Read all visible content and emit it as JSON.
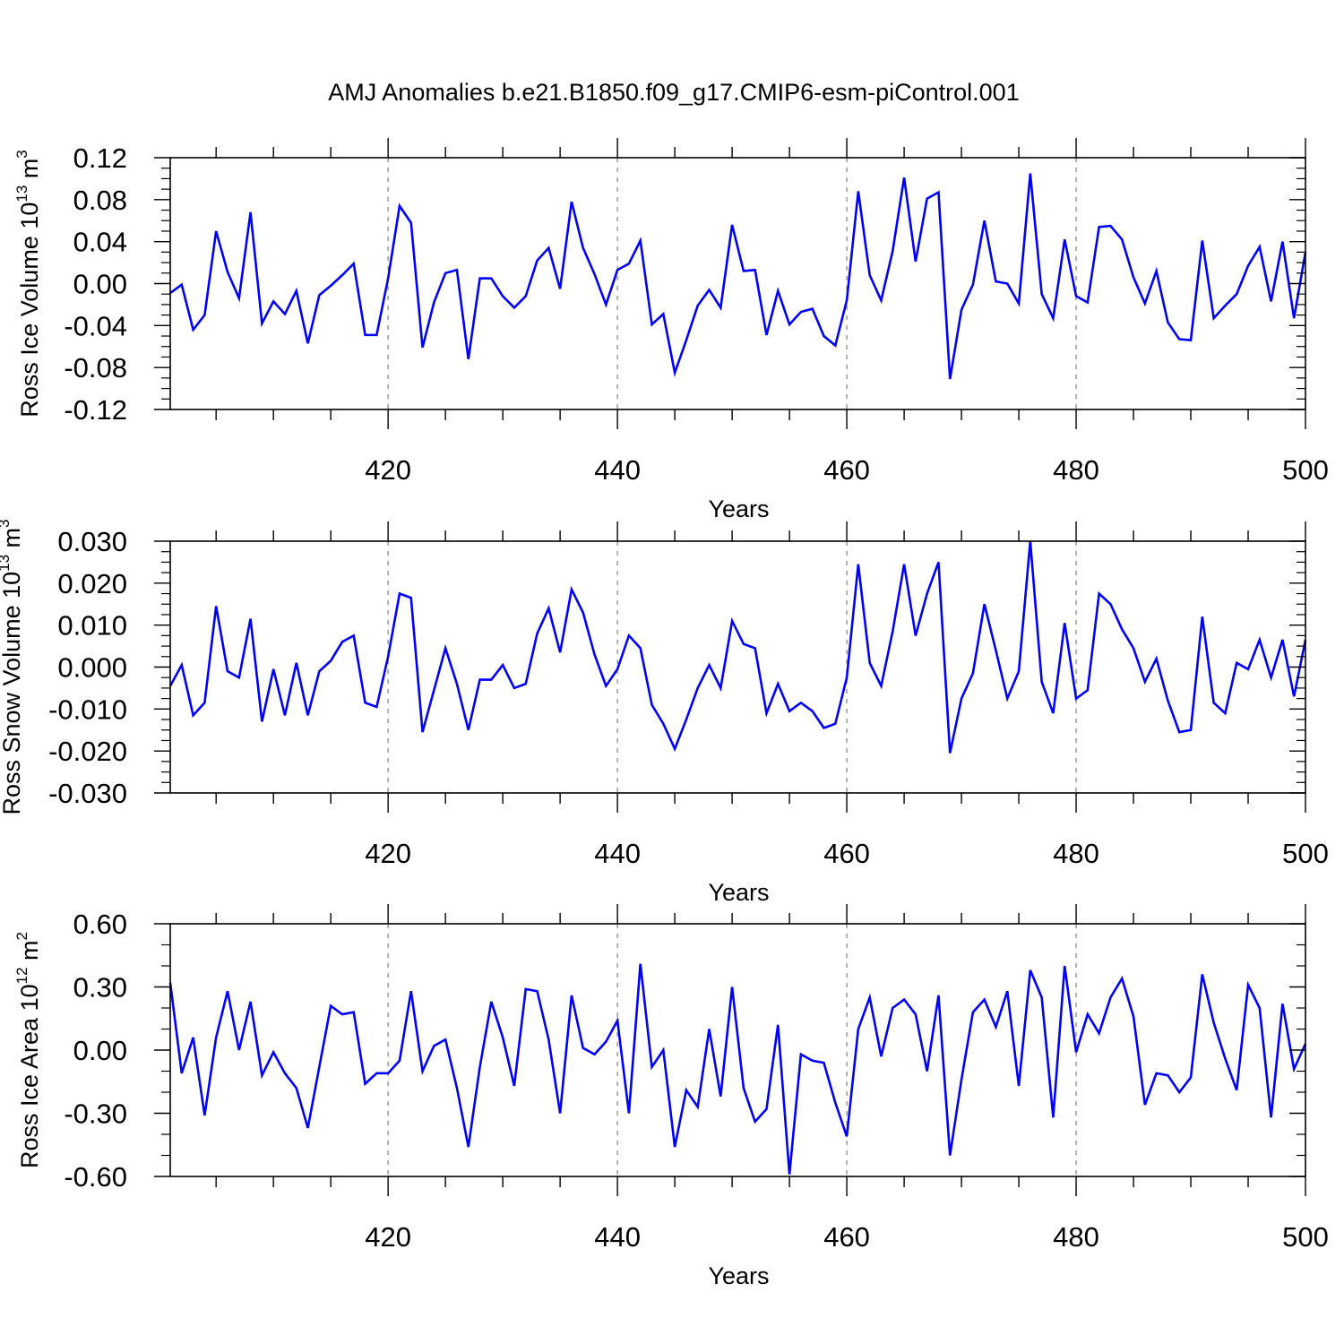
{
  "figure_title": "AMJ Anomalies b.e21.B1850.f09_g17.CMIP6-esm-piControl.001",
  "colors": {
    "line": "#0000ff",
    "axis": "#000000",
    "grid": "#999999",
    "background": "#ffffff"
  },
  "chart_data": [
    {
      "type": "line",
      "title": "",
      "xlabel": "Years",
      "ylabel": {
        "text": "Ross Ice Volume 10",
        "sup1": "13",
        "mid": " m",
        "sup2": "3"
      },
      "xlim": [
        401,
        500
      ],
      "ylim": [
        -0.12,
        0.12
      ],
      "x_major_ticks": [
        420,
        440,
        460,
        480,
        500
      ],
      "x_tick_labels": [
        "420",
        "440",
        "460",
        "480",
        "500"
      ],
      "y_ticks": [
        -0.12,
        -0.08,
        -0.04,
        0.0,
        0.04,
        0.08,
        0.12
      ],
      "y_tick_labels": [
        "-0.12",
        "-0.08",
        "-0.04",
        "0.00",
        "0.04",
        "0.08",
        "0.12"
      ],
      "y_minor_step": 0.01,
      "grid": "vertical dashed at major x ticks",
      "x_start": 401,
      "series": [
        {
          "values": [
            -0.009,
            -0.001,
            -0.044,
            -0.03,
            0.05,
            0.011,
            -0.014,
            0.068,
            -0.038,
            -0.017,
            -0.029,
            -0.007,
            -0.057,
            -0.011,
            -0.002,
            0.008,
            0.019,
            -0.049,
            -0.049,
            0.005,
            0.074,
            0.058,
            -0.061,
            -0.018,
            0.01,
            0.013,
            -0.072,
            0.005,
            0.005,
            -0.012,
            -0.023,
            -0.012,
            0.022,
            0.034,
            -0.005,
            0.078,
            0.034,
            0.009,
            -0.02,
            0.013,
            0.019,
            0.041,
            -0.039,
            -0.029,
            -0.085,
            -0.054,
            -0.021,
            -0.006,
            -0.023,
            0.056,
            0.012,
            0.013,
            -0.049,
            -0.007,
            -0.039,
            -0.027,
            -0.024,
            -0.05,
            -0.059,
            -0.016,
            0.088,
            0.008,
            -0.016,
            0.031,
            0.101,
            0.021,
            0.081,
            0.087,
            -0.091,
            -0.025,
            -0.001,
            0.06,
            0.002,
            0.0,
            -0.019,
            0.105,
            -0.01,
            -0.033,
            0.042,
            -0.012,
            -0.018,
            0.054,
            0.055,
            0.042,
            0.006,
            -0.019,
            0.012,
            -0.037,
            -0.053,
            -0.054,
            0.041,
            -0.033,
            -0.021,
            -0.01,
            0.017,
            0.035,
            -0.017,
            0.04,
            -0.033,
            0.03
          ]
        }
      ]
    },
    {
      "type": "line",
      "title": "",
      "xlabel": "Years",
      "ylabel": {
        "text": "Ross Snow Volume 10",
        "sup1": "13",
        "mid": " m",
        "sup2": "3"
      },
      "xlim": [
        401,
        500
      ],
      "ylim": [
        -0.03,
        0.03
      ],
      "x_major_ticks": [
        420,
        440,
        460,
        480,
        500
      ],
      "x_tick_labels": [
        "420",
        "440",
        "460",
        "480",
        "500"
      ],
      "y_ticks": [
        -0.03,
        -0.02,
        -0.01,
        0.0,
        0.01,
        0.02,
        0.03
      ],
      "y_tick_labels": [
        "-0.030",
        "-0.020",
        "-0.010",
        "0.000",
        "0.010",
        "0.020",
        "0.030"
      ],
      "y_minor_step": 0.0025,
      "grid": "vertical dashed at major x ticks",
      "x_start": 401,
      "series": [
        {
          "values": [
            -0.0045,
            0.0005,
            -0.0115,
            -0.0085,
            0.0145,
            -0.001,
            -0.0025,
            0.0115,
            -0.013,
            -0.0005,
            -0.0115,
            0.001,
            -0.0115,
            -0.001,
            0.0015,
            0.006,
            0.0075,
            -0.0085,
            -0.0095,
            0.0025,
            0.0175,
            0.0165,
            -0.0155,
            -0.0055,
            0.0045,
            -0.004,
            -0.015,
            -0.003,
            -0.003,
            0.0005,
            -0.005,
            -0.004,
            0.008,
            0.014,
            0.0035,
            0.0185,
            0.013,
            0.003,
            -0.0045,
            -0.0005,
            0.0075,
            0.0045,
            -0.009,
            -0.0135,
            -0.0195,
            -0.0125,
            -0.005,
            0.0005,
            -0.005,
            0.011,
            0.0055,
            0.0045,
            -0.011,
            -0.004,
            -0.0105,
            -0.0085,
            -0.0105,
            -0.0145,
            -0.0135,
            -0.0025,
            0.0245,
            0.001,
            -0.0045,
            0.0085,
            0.0245,
            0.0075,
            0.0175,
            0.025,
            -0.0205,
            -0.0075,
            -0.0015,
            0.015,
            0.004,
            -0.0075,
            -0.001,
            0.03,
            -0.0035,
            -0.011,
            0.0105,
            -0.0075,
            -0.0055,
            0.0175,
            0.015,
            0.009,
            0.0045,
            -0.0035,
            0.002,
            -0.008,
            -0.0155,
            -0.015,
            0.012,
            -0.0085,
            -0.011,
            0.001,
            -0.0005,
            0.0065,
            -0.0025,
            0.0065,
            -0.007,
            0.0065
          ]
        }
      ]
    },
    {
      "type": "line",
      "title": "",
      "xlabel": "Years",
      "ylabel": {
        "text": "Ross Ice Area 10",
        "sup1": "12",
        "mid": " m",
        "sup2": "2"
      },
      "xlim": [
        401,
        500
      ],
      "ylim": [
        -0.6,
        0.6
      ],
      "x_major_ticks": [
        420,
        440,
        460,
        480,
        500
      ],
      "x_tick_labels": [
        "420",
        "440",
        "460",
        "480",
        "500"
      ],
      "y_ticks": [
        -0.6,
        -0.3,
        0.0,
        0.3,
        0.6
      ],
      "y_tick_labels": [
        "-0.60",
        "-0.30",
        "0.00",
        "0.30",
        "0.60"
      ],
      "y_minor_step": 0.1,
      "grid": "vertical dashed at major x ticks",
      "x_start": 401,
      "series": [
        {
          "values": [
            0.32,
            -0.11,
            0.06,
            -0.31,
            0.06,
            0.28,
            0.0,
            0.23,
            -0.12,
            -0.01,
            -0.11,
            -0.18,
            -0.37,
            -0.08,
            0.21,
            0.17,
            0.18,
            -0.16,
            -0.11,
            -0.11,
            -0.05,
            0.28,
            -0.1,
            0.02,
            0.05,
            -0.18,
            -0.46,
            -0.08,
            0.23,
            0.06,
            -0.17,
            0.29,
            0.28,
            0.05,
            -0.3,
            0.26,
            0.01,
            -0.02,
            0.04,
            0.14,
            -0.3,
            0.41,
            -0.08,
            0.0,
            -0.46,
            -0.19,
            -0.27,
            0.1,
            -0.22,
            0.3,
            -0.18,
            -0.34,
            -0.28,
            0.12,
            -0.59,
            -0.02,
            -0.05,
            -0.06,
            -0.25,
            -0.41,
            0.1,
            0.25,
            -0.03,
            0.2,
            0.24,
            0.17,
            -0.1,
            0.26,
            -0.5,
            -0.14,
            0.18,
            0.24,
            0.11,
            0.28,
            -0.17,
            0.38,
            0.25,
            -0.32,
            0.4,
            -0.01,
            0.17,
            0.08,
            0.25,
            0.34,
            0.16,
            -0.26,
            -0.11,
            -0.12,
            -0.2,
            -0.13,
            0.36,
            0.13,
            -0.04,
            -0.19,
            0.31,
            0.2,
            -0.32,
            0.22,
            -0.09,
            0.03
          ]
        }
      ]
    }
  ]
}
